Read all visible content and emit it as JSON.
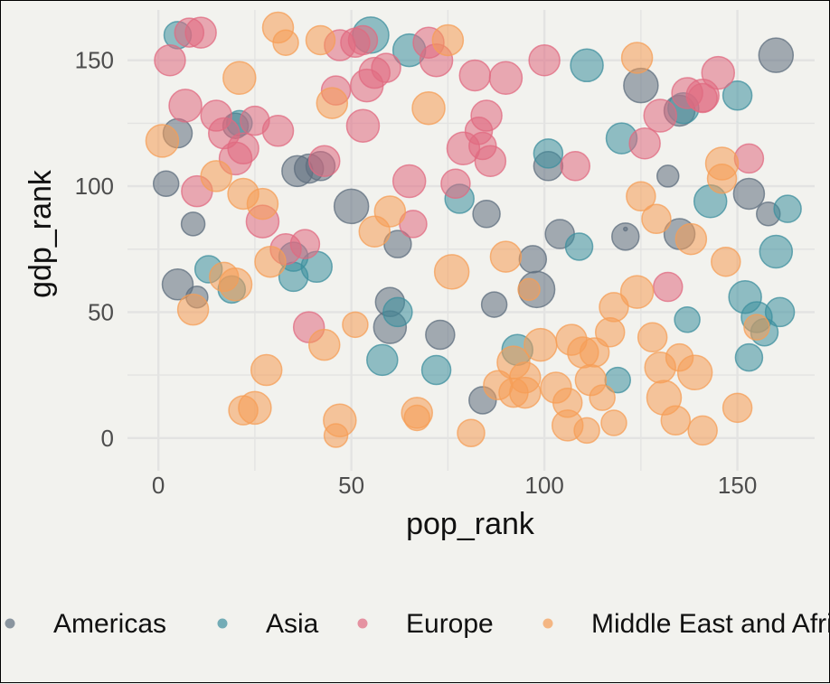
{
  "chart_data": {
    "type": "scatter",
    "xlabel": "pop_rank",
    "ylabel": "gdp_rank",
    "xlim": [
      -8,
      170
    ],
    "ylim": [
      -13,
      170
    ],
    "x_ticks": [
      0,
      50,
      100,
      150
    ],
    "y_ticks": [
      0,
      50,
      100,
      150
    ],
    "grid": true,
    "legend_position": "bottom",
    "series": [
      {
        "name": "Americas",
        "color": "#5e6e7e",
        "points": [
          [
            5,
            121,
            16
          ],
          [
            2,
            101,
            14
          ],
          [
            5,
            61,
            17
          ],
          [
            9,
            85,
            13
          ],
          [
            10,
            56,
            12
          ],
          [
            20,
            124,
            14
          ],
          [
            36,
            106,
            17
          ],
          [
            39,
            107,
            16
          ],
          [
            42,
            108,
            16
          ],
          [
            50,
            92,
            19
          ],
          [
            60,
            44,
            18
          ],
          [
            60,
            54,
            16
          ],
          [
            62,
            77,
            15
          ],
          [
            73,
            41,
            16
          ],
          [
            84,
            15,
            15
          ],
          [
            85,
            89,
            15
          ],
          [
            87,
            53,
            14
          ],
          [
            97,
            71,
            15
          ],
          [
            98,
            59,
            20
          ],
          [
            101,
            108,
            16
          ],
          [
            104,
            81,
            16
          ],
          [
            121,
            80,
            15
          ],
          [
            125,
            140,
            19
          ],
          [
            132,
            104,
            12
          ],
          [
            135,
            81,
            17
          ],
          [
            135,
            130,
            17
          ],
          [
            153,
            97,
            17
          ],
          [
            158,
            89,
            13
          ],
          [
            160,
            152,
            19
          ],
          [
            121,
            83,
            2
          ]
        ]
      },
      {
        "name": "Asia",
        "color": "#3d8f9e",
        "points": [
          [
            5,
            160,
            15
          ],
          [
            13,
            67,
            15
          ],
          [
            19,
            59,
            15
          ],
          [
            21,
            125,
            14
          ],
          [
            35,
            72,
            16
          ],
          [
            35,
            64,
            16
          ],
          [
            41,
            68,
            17
          ],
          [
            55,
            160,
            20
          ],
          [
            58,
            31,
            17
          ],
          [
            62,
            50,
            16
          ],
          [
            65,
            154,
            18
          ],
          [
            72,
            27,
            16
          ],
          [
            78,
            95,
            16
          ],
          [
            93,
            35,
            17
          ],
          [
            101,
            113,
            16
          ],
          [
            109,
            76,
            15
          ],
          [
            111,
            148,
            18
          ],
          [
            120,
            119,
            17
          ],
          [
            119,
            23,
            14
          ],
          [
            136,
            131,
            17
          ],
          [
            137,
            47,
            14
          ],
          [
            143,
            94,
            18
          ],
          [
            150,
            136,
            16
          ],
          [
            152,
            56,
            18
          ],
          [
            153,
            32,
            15
          ],
          [
            155,
            48,
            17
          ],
          [
            157,
            42,
            15
          ],
          [
            160,
            74,
            18
          ],
          [
            163,
            91,
            15
          ],
          [
            161,
            50,
            16
          ]
        ]
      },
      {
        "name": "Europe",
        "color": "#e06a80",
        "points": [
          [
            3,
            150,
            17
          ],
          [
            8,
            161,
            16
          ],
          [
            11,
            161,
            17
          ],
          [
            7,
            132,
            18
          ],
          [
            10,
            98,
            17
          ],
          [
            15,
            128,
            17
          ],
          [
            17,
            121,
            17
          ],
          [
            20,
            111,
            18
          ],
          [
            22,
            115,
            17
          ],
          [
            25,
            126,
            16
          ],
          [
            27,
            86,
            18
          ],
          [
            31,
            122,
            17
          ],
          [
            33,
            75,
            17
          ],
          [
            38,
            77,
            16
          ],
          [
            39,
            44,
            17
          ],
          [
            43,
            110,
            17
          ],
          [
            46,
            138,
            16
          ],
          [
            47,
            156,
            17
          ],
          [
            51,
            157,
            16
          ],
          [
            53,
            124,
            18
          ],
          [
            54,
            140,
            18
          ],
          [
            56,
            145,
            17
          ],
          [
            59,
            147,
            16
          ],
          [
            65,
            102,
            18
          ],
          [
            66,
            85,
            15
          ],
          [
            70,
            157,
            17
          ],
          [
            72,
            150,
            18
          ],
          [
            77,
            101,
            16
          ],
          [
            79,
            115,
            18
          ],
          [
            82,
            144,
            17
          ],
          [
            84,
            116,
            15
          ],
          [
            85,
            128,
            17
          ],
          [
            86,
            110,
            17
          ],
          [
            90,
            143,
            18
          ],
          [
            100,
            150,
            17
          ],
          [
            108,
            108,
            16
          ],
          [
            126,
            117,
            17
          ],
          [
            130,
            128,
            18
          ],
          [
            132,
            60,
            16
          ],
          [
            137,
            137,
            17
          ],
          [
            141,
            135,
            16
          ],
          [
            141,
            136,
            18
          ],
          [
            145,
            145,
            18
          ],
          [
            153,
            111,
            16
          ],
          [
            53,
            158,
            16
          ],
          [
            83,
            122,
            15
          ]
        ]
      },
      {
        "name": "Middle East and Africa",
        "color": "#f59d55",
        "points": [
          [
            1,
            118,
            18
          ],
          [
            9,
            51,
            17
          ],
          [
            15,
            104,
            17
          ],
          [
            17,
            64,
            16
          ],
          [
            20,
            61,
            18
          ],
          [
            21,
            143,
            18
          ],
          [
            22,
            97,
            17
          ],
          [
            22,
            11,
            16
          ],
          [
            25,
            12,
            18
          ],
          [
            27,
            93,
            17
          ],
          [
            28,
            27,
            17
          ],
          [
            29,
            70,
            17
          ],
          [
            31,
            163,
            17
          ],
          [
            33,
            157,
            14
          ],
          [
            42,
            158,
            16
          ],
          [
            43,
            37,
            17
          ],
          [
            45,
            133,
            17
          ],
          [
            46,
            1,
            13
          ],
          [
            47,
            7,
            18
          ],
          [
            51,
            45,
            14
          ],
          [
            56,
            82,
            17
          ],
          [
            60,
            90,
            17
          ],
          [
            67,
            10,
            17
          ],
          [
            67,
            8,
            14
          ],
          [
            70,
            131,
            18
          ],
          [
            75,
            158,
            17
          ],
          [
            76,
            66,
            19
          ],
          [
            81,
            2,
            15
          ],
          [
            88,
            21,
            16
          ],
          [
            90,
            72,
            17
          ],
          [
            92,
            18,
            16
          ],
          [
            95,
            24,
            17
          ],
          [
            95,
            18,
            17
          ],
          [
            99,
            37,
            18
          ],
          [
            103,
            20,
            17
          ],
          [
            106,
            5,
            17
          ],
          [
            106,
            14,
            16
          ],
          [
            107,
            39,
            17
          ],
          [
            110,
            34,
            17
          ],
          [
            111,
            3,
            14
          ],
          [
            112,
            23,
            17
          ],
          [
            113,
            34,
            16
          ],
          [
            115,
            16,
            14
          ],
          [
            117,
            42,
            16
          ],
          [
            118,
            6,
            14
          ],
          [
            118,
            52,
            16
          ],
          [
            124,
            58,
            18
          ],
          [
            125,
            96,
            16
          ],
          [
            128,
            40,
            16
          ],
          [
            129,
            87,
            16
          ],
          [
            130,
            28,
            17
          ],
          [
            131,
            16,
            19
          ],
          [
            134,
            7,
            16
          ],
          [
            135,
            32,
            15
          ],
          [
            138,
            79,
            17
          ],
          [
            139,
            26,
            19
          ],
          [
            141,
            3,
            16
          ],
          [
            146,
            109,
            18
          ],
          [
            147,
            70,
            16
          ],
          [
            150,
            12,
            16
          ],
          [
            124,
            151,
            17
          ],
          [
            155,
            44,
            14
          ],
          [
            146,
            103,
            16
          ],
          [
            96,
            59,
            12
          ],
          [
            92,
            30,
            18
          ]
        ]
      }
    ]
  }
}
